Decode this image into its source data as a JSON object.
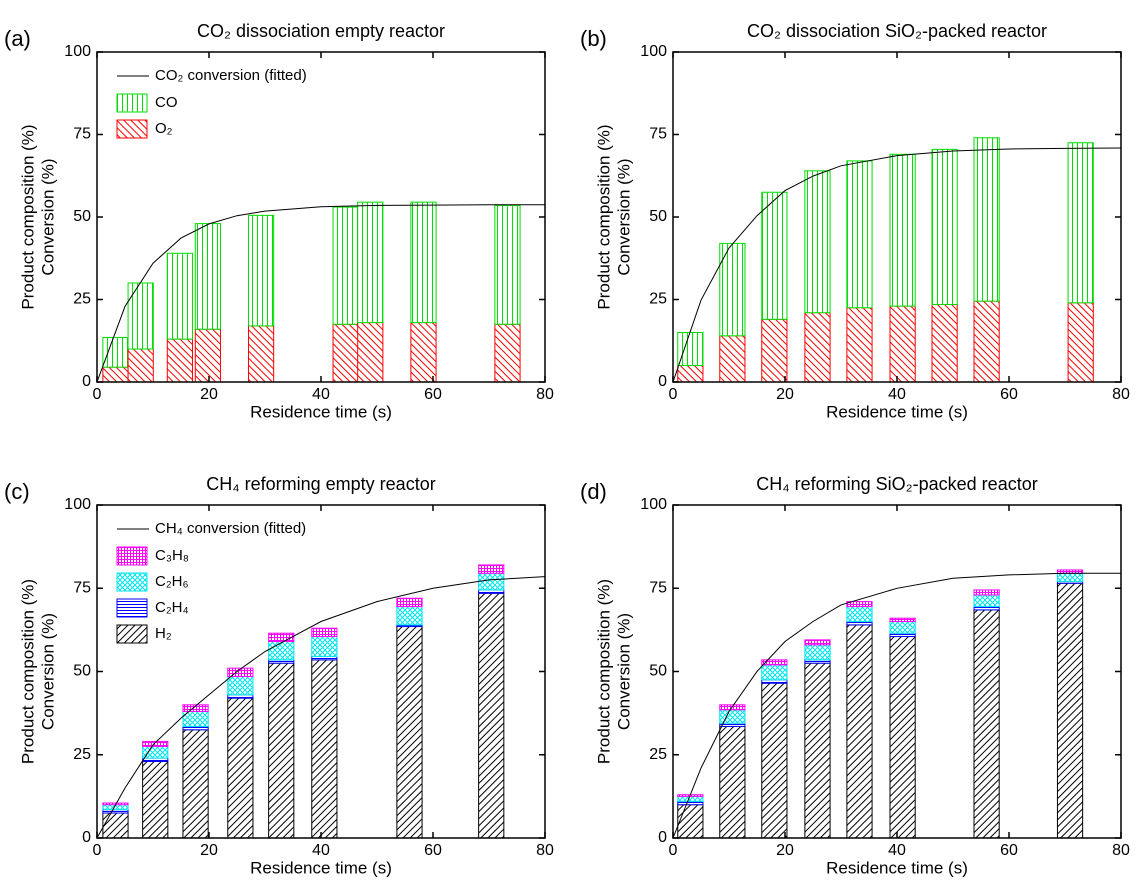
{
  "chart_data": [
    {
      "type": "bar",
      "stacked": true,
      "label": "(a)",
      "title": "CO₂ dissociation empty reactor",
      "xlabel": "Residence time (s)",
      "ylabel": [
        "Product composition (%)",
        "Conversion (%)"
      ],
      "xlim": [
        0,
        80
      ],
      "ylim": [
        0,
        100
      ],
      "xticks": [
        0,
        20,
        40,
        60,
        80
      ],
      "yticks": [
        0,
        25,
        50,
        75,
        100
      ],
      "legend": true,
      "x": [
        3.3,
        7.8,
        14.8,
        19.8,
        29.3,
        44.4,
        48.8,
        58.3,
        73.3
      ],
      "series": [
        {
          "name": "O₂",
          "color": "#ff0000",
          "pattern": "back-diagonal",
          "values": [
            4.5,
            10,
            13,
            16,
            17,
            17.5,
            18,
            18,
            17.5
          ]
        },
        {
          "name": "CO",
          "color": "#00dd00",
          "pattern": "vertical",
          "values": [
            9,
            20,
            26,
            32,
            33.5,
            35.5,
            36.5,
            36.5,
            36
          ]
        }
      ],
      "fit": {
        "name": "CO₂ conversion (fitted)",
        "color": "#000000",
        "x": [
          0,
          5,
          10,
          15,
          20,
          25,
          30,
          40,
          50,
          60,
          70,
          80
        ],
        "values": [
          0,
          22.9,
          36.0,
          43.6,
          47.9,
          50.4,
          51.8,
          53.1,
          53.5,
          53.6,
          53.7,
          53.7
        ]
      }
    },
    {
      "type": "bar",
      "stacked": true,
      "label": "(b)",
      "title": "CO₂ dissociation SiO₂-packed reactor",
      "xlabel": "Residence time (s)",
      "ylabel": [
        "Product composition (%)",
        "Conversion (%)"
      ],
      "xlim": [
        0,
        80
      ],
      "ylim": [
        0,
        100
      ],
      "xticks": [
        0,
        20,
        40,
        60,
        80
      ],
      "yticks": [
        0,
        25,
        50,
        75,
        100
      ],
      "legend": false,
      "x": [
        3.1,
        10.6,
        18.1,
        25.8,
        33.3,
        41,
        48.5,
        56,
        72.8
      ],
      "series": [
        {
          "name": "O₂",
          "color": "#ff0000",
          "pattern": "back-diagonal",
          "values": [
            5,
            14,
            19,
            21,
            22.5,
            23,
            23.5,
            24.5,
            24
          ]
        },
        {
          "name": "CO",
          "color": "#00dd00",
          "pattern": "vertical",
          "values": [
            10,
            28,
            38.5,
            43,
            44.5,
            46,
            47,
            49.5,
            48.5
          ]
        }
      ],
      "fit": {
        "name": "CO₂ conversion (fitted)",
        "color": "#000000",
        "x": [
          0,
          5,
          10,
          15,
          20,
          25,
          30,
          40,
          50,
          60,
          70,
          80
        ],
        "values": [
          0,
          24.8,
          40.6,
          50.4,
          58.0,
          62.4,
          65.5,
          68.6,
          70.0,
          70.6,
          70.8,
          70.9
        ]
      }
    },
    {
      "type": "bar",
      "stacked": true,
      "label": "(c)",
      "title": "CH₄ reforming empty reactor",
      "xlabel": "Residence time (s)",
      "ylabel": [
        "Product composition (%)",
        "Conversion (%)"
      ],
      "xlim": [
        0,
        80
      ],
      "ylim": [
        0,
        100
      ],
      "xticks": [
        0,
        20,
        40,
        60,
        80
      ],
      "yticks": [
        0,
        25,
        50,
        75,
        100
      ],
      "legend": true,
      "x": [
        3.3,
        10.4,
        17.6,
        25.6,
        32.9,
        40.6,
        55.8,
        70.4
      ],
      "series": [
        {
          "name": "H₂",
          "color": "#000000",
          "pattern": "diagonal",
          "values": [
            7.5,
            23,
            32.5,
            42,
            52.5,
            53.5,
            63.5,
            73.5
          ]
        },
        {
          "name": "C₂H₄",
          "color": "#0000ff",
          "pattern": "horizontal",
          "values": [
            1,
            1,
            1,
            1,
            1,
            1,
            0.5,
            1
          ]
        },
        {
          "name": "C₂H₆",
          "color": "#00e5ee",
          "pattern": "cross",
          "values": [
            1.5,
            3.5,
            4.5,
            5.5,
            5.5,
            6,
            5.5,
            5
          ]
        },
        {
          "name": "C₃H₈",
          "color": "#ff00ff",
          "pattern": "grid",
          "values": [
            0.5,
            1.5,
            2,
            2.5,
            2.5,
            2.5,
            2.5,
            2.5
          ]
        }
      ],
      "fit": {
        "name": "CH₄ conversion (fitted)",
        "color": "#000000",
        "x": [
          0,
          5,
          10,
          15,
          20,
          25,
          30,
          40,
          50,
          60,
          70,
          80
        ],
        "values": [
          0,
          15,
          28,
          36,
          43,
          50,
          56,
          65,
          71,
          75,
          77.5,
          78.5
        ]
      }
    },
    {
      "type": "bar",
      "stacked": true,
      "label": "(d)",
      "title": "CH₄ reforming SiO₂-packed reactor",
      "xlabel": "Residence time (s)",
      "ylabel": [
        "Product composition (%)",
        "Conversion (%)"
      ],
      "xlim": [
        0,
        80
      ],
      "ylim": [
        0,
        100
      ],
      "xticks": [
        0,
        20,
        40,
        60,
        80
      ],
      "yticks": [
        0,
        25,
        50,
        75,
        100
      ],
      "legend": false,
      "x": [
        3.1,
        10.6,
        18.1,
        25.8,
        33.3,
        41,
        56,
        70.9
      ],
      "series": [
        {
          "name": "H₂",
          "color": "#000000",
          "pattern": "diagonal",
          "values": [
            10,
            33.5,
            46.5,
            52.5,
            64,
            60.5,
            68.5,
            76.5
          ]
        },
        {
          "name": "C₂H₄",
          "color": "#0000ff",
          "pattern": "horizontal",
          "values": [
            1,
            1,
            1,
            1,
            1,
            1,
            1,
            0.5
          ]
        },
        {
          "name": "C₂H₆",
          "color": "#00e5ee",
          "pattern": "cross",
          "values": [
            1.5,
            4,
            4.5,
            4.5,
            4.5,
            3.5,
            3.5,
            2.5
          ]
        },
        {
          "name": "C₃H₈",
          "color": "#ff00ff",
          "pattern": "grid",
          "values": [
            0.5,
            1.5,
            1.5,
            1.5,
            1.5,
            1,
            1.5,
            1
          ]
        }
      ],
      "fit": {
        "name": "CH₄ conversion (fitted)",
        "color": "#000000",
        "x": [
          0,
          5,
          10,
          15,
          20,
          25,
          30,
          40,
          50,
          60,
          70,
          80
        ],
        "values": [
          0,
          21,
          38,
          50,
          59,
          65,
          70,
          75,
          78,
          79,
          79.5,
          79.5
        ]
      }
    }
  ]
}
